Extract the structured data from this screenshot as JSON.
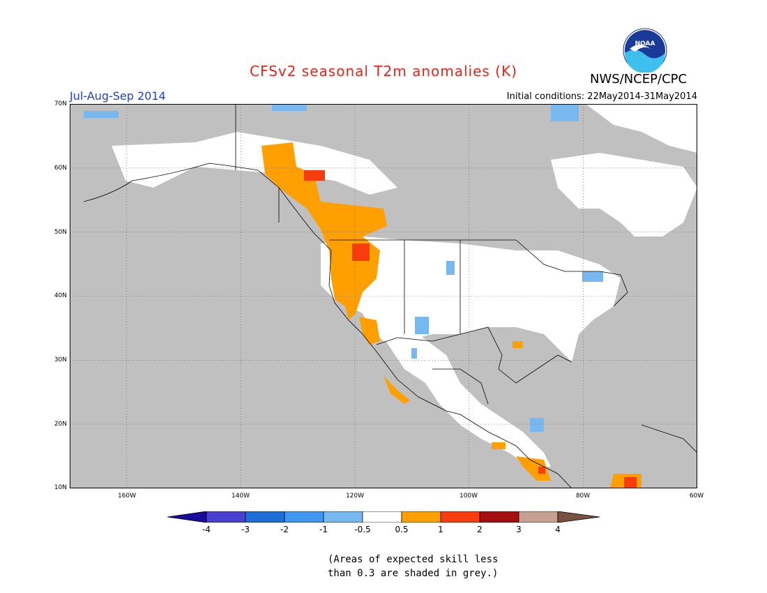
{
  "header": {
    "title": "CFSv2 seasonal T2m anomalies (K)",
    "season": "Jul-Aug-Sep 2014",
    "initial_conditions": "Initial conditions: 22May2014-31May2014",
    "agency": "NWS/NCEP/CPC",
    "logo_text": "NOAA"
  },
  "map": {
    "lat_labels": [
      "70N",
      "60N",
      "50N",
      "40N",
      "30N",
      "20N",
      "10N"
    ],
    "lon_labels": [
      "160W",
      "140W",
      "120W",
      "100W",
      "80W",
      "60W"
    ],
    "colors": {
      "ocean_grey": "#c0c0c0",
      "land_white": "#ffffff",
      "orange": "#ffa000",
      "red_orange": "#f73c0f",
      "light_blue": "#78b8f0",
      "mid_blue": "#4096f0"
    }
  },
  "legend": {
    "labels": [
      "-4",
      "-3",
      "-2",
      "-1",
      "-0.5",
      "0.5",
      "1",
      "2",
      "3",
      "4"
    ],
    "colors": [
      "#1a0aa0",
      "#4a40d0",
      "#1e6ed8",
      "#4096f0",
      "#78b8f0",
      "#ffffff",
      "#ffa000",
      "#f73c0f",
      "#a60f0f",
      "#c8a090",
      "#7a5040"
    ]
  },
  "note": {
    "line1": "(Areas of expected skill less",
    "line2": "than 0.3 are shaded in grey.)"
  }
}
